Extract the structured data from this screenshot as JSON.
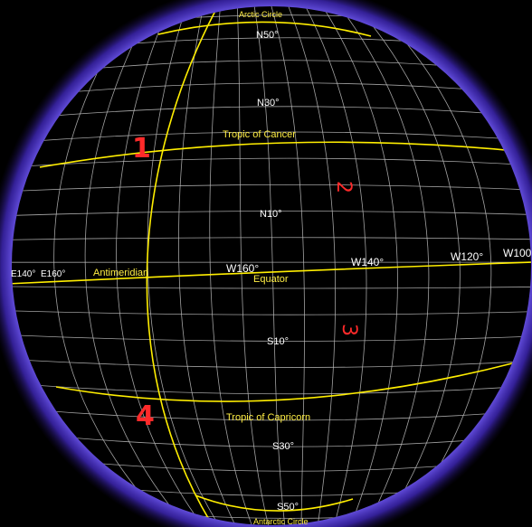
{
  "colors": {
    "background": "#000000",
    "glow": "#5a3cff",
    "grid": "#bdbdbd",
    "special_lines": "#ffee00",
    "special_labels": "#ffee44",
    "labels": "#ffffff",
    "marks": "#ff2a2a"
  },
  "latitude_labels": {
    "n50": "N50°",
    "n30": "N30°",
    "n10": "N10°",
    "s10": "S10°",
    "s30": "S30°",
    "s50": "S50°"
  },
  "longitude_labels": {
    "e140": "E140°",
    "e160": "E160°",
    "w160": "W160°",
    "w140": "W140°",
    "w120": "W120°",
    "w100": "W100"
  },
  "special_lines": {
    "arctic_circle": "Arctic Circle",
    "tropic_of_cancer": "Tropic of Cancer",
    "equator": "Equator",
    "tropic_of_capricorn": "Tropic of Capricorn",
    "antarctic_circle": "Antarctic Circle",
    "antimeridian": "Antimeridian"
  },
  "annotations": {
    "mark_1": "1",
    "mark_2": "2",
    "mark_3": "3",
    "mark_4": "4"
  }
}
